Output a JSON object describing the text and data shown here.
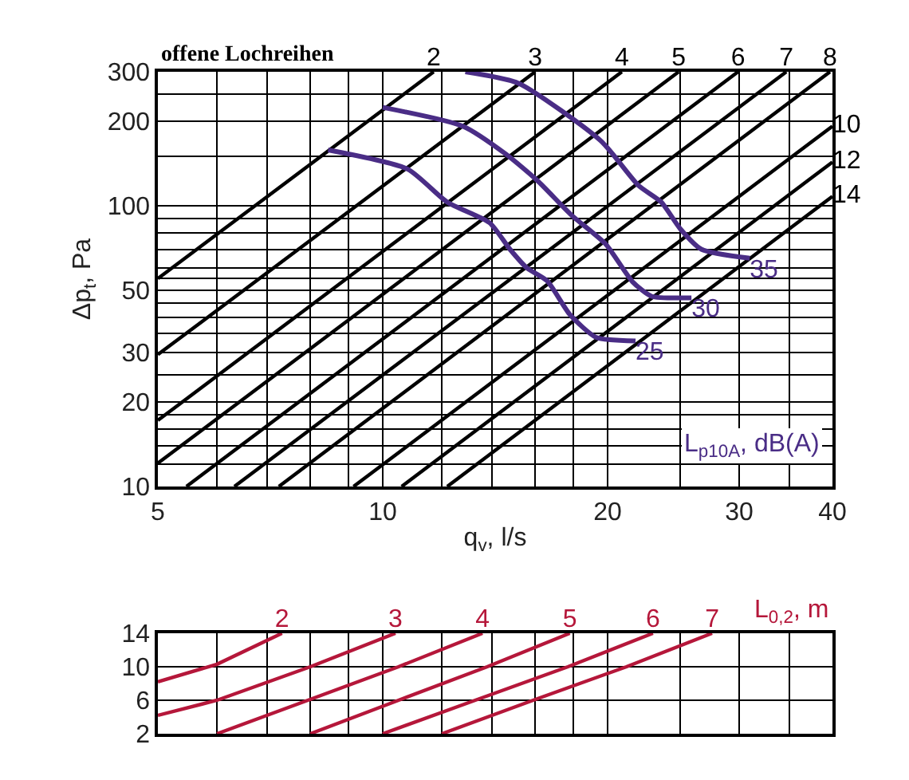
{
  "chart_data": [
    {
      "type": "line",
      "title": "offene Lochreihen",
      "xlabel": "q$_{v}$, l/s",
      "ylabel": "Δp$_{t}$, Pa",
      "annotations": [
        "L$_{p10A}$, dB(A)"
      ],
      "log": "xy",
      "grid": true,
      "xlim": [
        5,
        40
      ],
      "ylim": [
        10,
        300
      ],
      "xticks": [
        5,
        {
          "value": 6,
          "label": null
        },
        {
          "value": 7,
          "label": null
        },
        {
          "value": 8,
          "label": null
        },
        {
          "value": 9,
          "label": null
        },
        10,
        {
          "value": 12,
          "label": null
        },
        {
          "value": 14,
          "label": null
        },
        {
          "value": 16,
          "label": null
        },
        {
          "value": 18,
          "label": null
        },
        20,
        {
          "value": 25,
          "label": null
        },
        30,
        {
          "value": 35,
          "label": null
        },
        40
      ],
      "yticks": [
        10,
        {
          "value": 12,
          "label": null
        },
        {
          "value": 14,
          "label": null
        },
        {
          "value": 16,
          "label": null
        },
        {
          "value": 18,
          "label": null
        },
        20,
        {
          "value": 25,
          "label": null
        },
        30,
        {
          "value": 35,
          "label": null
        },
        {
          "value": 40,
          "label": null
        },
        {
          "value": 45,
          "label": null
        },
        50,
        {
          "value": 55,
          "label": null
        },
        {
          "value": 60,
          "label": null
        },
        {
          "value": 70,
          "label": null
        },
        {
          "value": 80,
          "label": null
        },
        {
          "value": 90,
          "label": null
        },
        100,
        {
          "value": 150,
          "label": null
        },
        200,
        {
          "value": 250,
          "label": null
        },
        300
      ],
      "series": [
        {
          "name": "2",
          "color": "#000000",
          "x": [
            5,
            11.7
          ],
          "values": [
            55,
            300
          ]
        },
        {
          "name": "3",
          "color": "#000000",
          "x": [
            5,
            16
          ],
          "values": [
            29.5,
            300
          ]
        },
        {
          "name": "4",
          "color": "#000000",
          "x": [
            5,
            20.9
          ],
          "values": [
            17.2,
            300
          ]
        },
        {
          "name": "5",
          "color": "#000000",
          "x": [
            5,
            24.9
          ],
          "values": [
            12.1,
            300
          ]
        },
        {
          "name": "6",
          "color": "#000000",
          "x": [
            5.46,
            29.9
          ],
          "values": [
            10,
            300
          ]
        },
        {
          "name": "7",
          "color": "#000000",
          "x": [
            6.33,
            34.7
          ],
          "values": [
            10,
            300
          ]
        },
        {
          "name": "8",
          "color": "#000000",
          "x": [
            7.26,
            39.7
          ],
          "values": [
            10,
            300
          ]
        },
        {
          "name": "10",
          "color": "#000000",
          "x": [
            9.14,
            40
          ],
          "values": [
            10,
            192
          ]
        },
        {
          "name": "12",
          "color": "#000000",
          "x": [
            10.6,
            40
          ],
          "values": [
            10,
            143
          ]
        },
        {
          "name": "14",
          "color": "#000000",
          "x": [
            12.2,
            40
          ],
          "values": [
            10,
            108
          ]
        },
        {
          "name": "25",
          "color": "#4a2d86",
          "x": [
            8.45,
            10.8,
            12.2,
            13.9,
            14.8,
            15.6,
            16.6,
            17.8,
            19.3,
            21.8
          ],
          "values": [
            158,
            135,
            103,
            87,
            70,
            60,
            54,
            41,
            34,
            33
          ]
        },
        {
          "name": "30",
          "color": "#4a2d86",
          "x": [
            10,
            12.8,
            14.6,
            16.1,
            17.9,
            19.9,
            21.6,
            22.9,
            25.9
          ],
          "values": [
            224,
            192,
            153,
            123,
            92.5,
            72.8,
            53.6,
            47.6,
            47
          ]
        },
        {
          "name": "35",
          "color": "#4a2d86",
          "x": [
            12.9,
            15.2,
            19.6,
            22,
            23.6,
            25,
            26.7,
            31
          ],
          "values": [
            300,
            273,
            170,
            118,
            103,
            83,
            70,
            65
          ]
        }
      ]
    },
    {
      "type": "line",
      "annotations": [
        "L$_{0,2}$, m"
      ],
      "log": "x",
      "grid": true,
      "tick_labels": "y",
      "xlim": [
        5,
        40
      ],
      "ylim": [
        2,
        14
      ],
      "xticks": [
        5,
        {
          "value": 6,
          "label": null
        },
        {
          "value": 7,
          "label": null
        },
        {
          "value": 8,
          "label": null
        },
        {
          "value": 9,
          "label": null
        },
        10,
        {
          "value": 12,
          "label": null
        },
        {
          "value": 14,
          "label": null
        },
        {
          "value": 16,
          "label": null
        },
        {
          "value": 18,
          "label": null
        },
        20,
        {
          "value": 25,
          "label": null
        },
        30,
        {
          "value": 35,
          "label": null
        },
        40
      ],
      "yticks": [
        2,
        6,
        10,
        14
      ],
      "series": [
        {
          "name": "2",
          "color": "#b5173a",
          "x": [
            5,
            6,
            7.33
          ],
          "values": [
            8.2,
            10.3,
            14
          ]
        },
        {
          "name": "3",
          "color": "#b5173a",
          "x": [
            5,
            6,
            8,
            10.4
          ],
          "values": [
            4.2,
            6,
            10,
            14
          ]
        },
        {
          "name": "4",
          "color": "#b5173a",
          "x": [
            6,
            7.94,
            10.5,
            13.6
          ],
          "values": [
            2,
            6,
            10,
            14
          ]
        },
        {
          "name": "5",
          "color": "#b5173a",
          "x": [
            8,
            10.5,
            13.8,
            17.8
          ],
          "values": [
            2,
            6,
            10,
            14
          ]
        },
        {
          "name": "6",
          "color": "#b5173a",
          "x": [
            10,
            13.3,
            17.7,
            23
          ],
          "values": [
            2,
            6,
            10,
            14
          ]
        },
        {
          "name": "7",
          "color": "#b5173a",
          "x": [
            12,
            15.9,
            21.2,
            27.6
          ],
          "values": [
            2,
            6,
            10,
            14
          ]
        }
      ]
    }
  ]
}
